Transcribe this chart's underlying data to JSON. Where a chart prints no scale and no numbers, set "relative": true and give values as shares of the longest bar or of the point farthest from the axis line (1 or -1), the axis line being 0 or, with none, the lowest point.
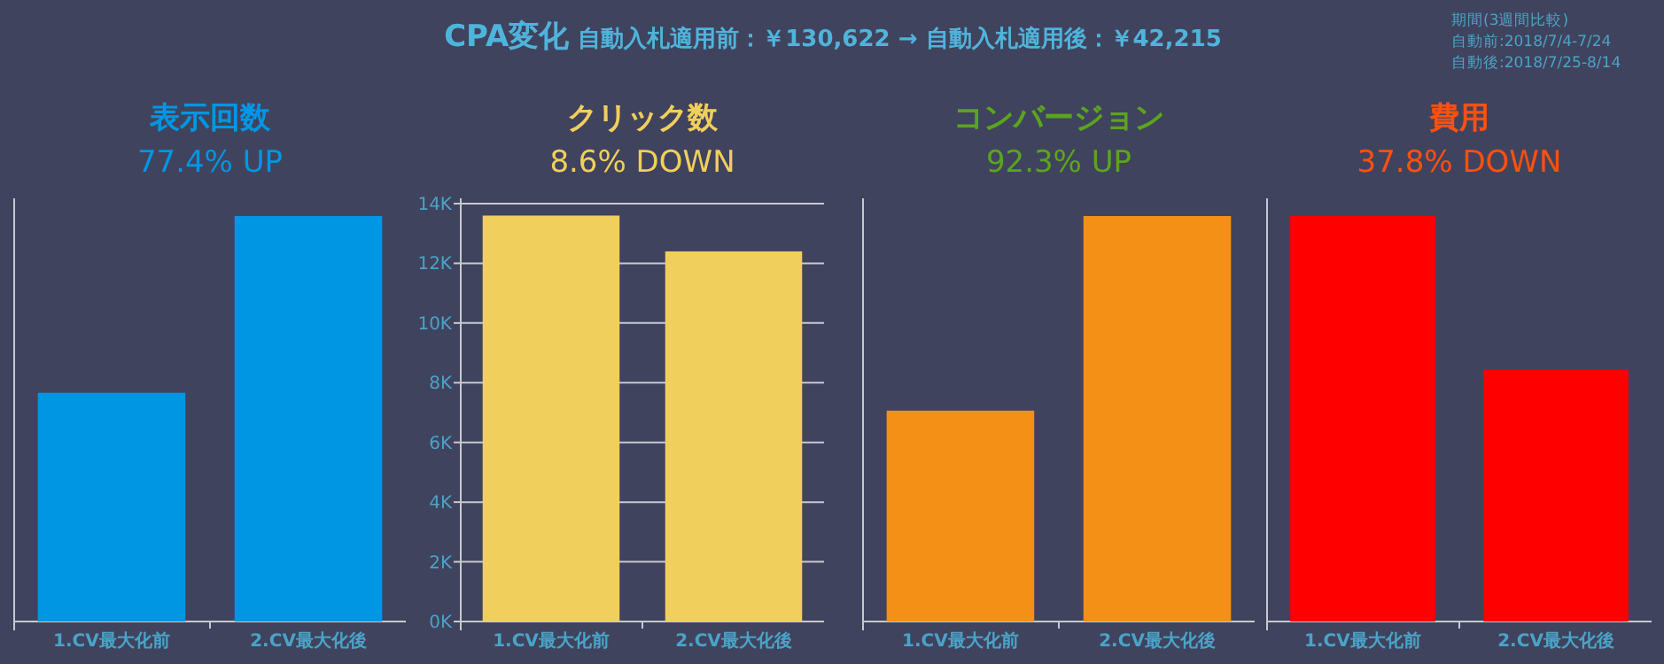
{
  "chart_data": [
    {
      "type": "bar",
      "title": "表示回数",
      "subtitle": "77.4% UP",
      "categories": [
        "1.CV最大化前",
        "2.CV最大化後"
      ],
      "values": [
        0.564,
        1
      ],
      "color": "#0096e4",
      "relative": true,
      "annotations": [
        "CPA変化",
        "自動入札適用前：￥130,622 → 自動入札適用後：￥42,215",
        "期間(3週間比較)",
        "自動前:2018/7/4-7/24",
        "自動後:2018/7/25-8/14"
      ]
    },
    {
      "type": "bar",
      "title": "クリック数",
      "subtitle": "8.6% DOWN",
      "categories": [
        "1.CV最大化前",
        "2.CV最大化後"
      ],
      "values": [
        13600,
        12400
      ],
      "color": "#f0cf5c",
      "ylim": [
        0,
        14000
      ],
      "yticks": [
        {
          "value": 0,
          "label": "0K"
        },
        {
          "value": 2000,
          "label": "2K"
        },
        {
          "value": 4000,
          "label": "4K"
        },
        {
          "value": 6000,
          "label": "6K"
        },
        {
          "value": 8000,
          "label": "8K"
        },
        {
          "value": 10000,
          "label": "10K"
        },
        {
          "value": 12000,
          "label": "12K"
        },
        {
          "value": 14000,
          "label": "14K"
        }
      ],
      "grid": "y"
    },
    {
      "type": "bar",
      "title": "コンバージョン",
      "subtitle": "92.3% UP",
      "categories": [
        "1.CV最大化前",
        "2.CV最大化後"
      ],
      "values": [
        0.52,
        1
      ],
      "color": "#f39015",
      "relative": true
    },
    {
      "type": "bar",
      "title": "費用",
      "subtitle": "37.8% DOWN",
      "categories": [
        "1.CV最大化前",
        "2.CV最大化後"
      ],
      "values": [
        1,
        0.62
      ],
      "color": "#ff0000",
      "relative": true
    }
  ]
}
